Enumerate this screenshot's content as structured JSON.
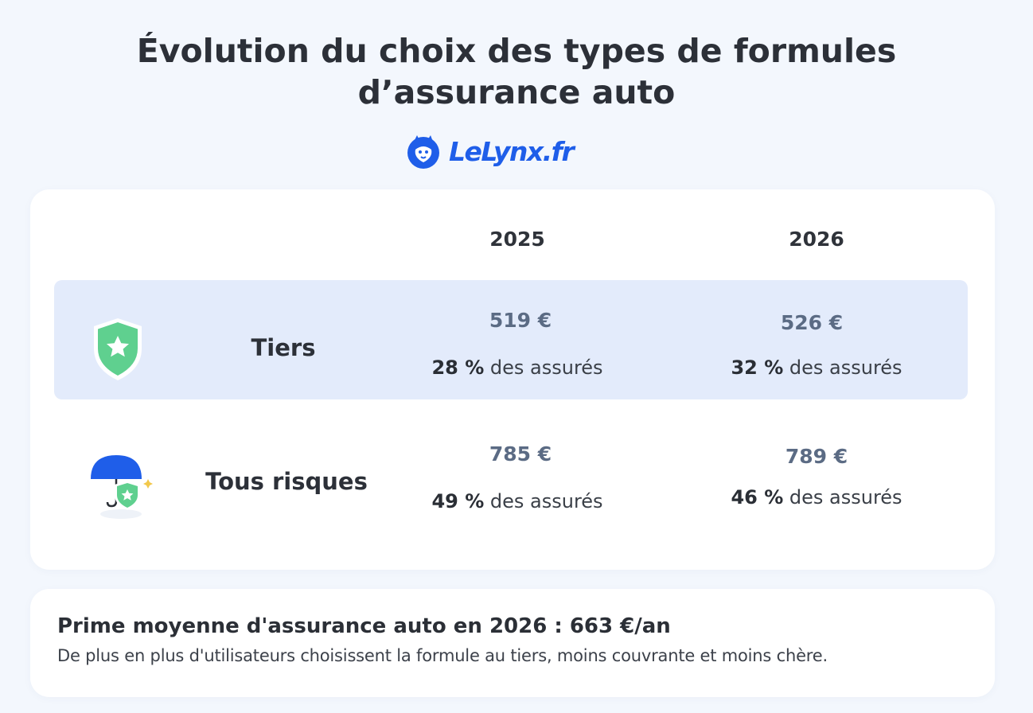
{
  "header": {
    "title_line1": "Évolution du choix des types de formules",
    "title_line2": "d’assurance auto",
    "logo_text": "LeLynx.fr"
  },
  "table": {
    "years": [
      "2025",
      "2026"
    ],
    "rows": [
      {
        "label": "Tiers",
        "icon": "shield-star-icon",
        "values": [
          {
            "price": "519 €",
            "share_pct": "28 %",
            "share_text": "des assurés"
          },
          {
            "price": "526 €",
            "share_pct": "32 %",
            "share_text": "des assurés"
          }
        ]
      },
      {
        "label": "Tous risques",
        "icon": "umbrella-shield-icon",
        "values": [
          {
            "price": "785 €",
            "share_pct": "49 %",
            "share_text": "des assurés"
          },
          {
            "price": "789 €",
            "share_pct": "46 %",
            "share_text": "des assurés"
          }
        ]
      }
    ]
  },
  "footer": {
    "title": "Prime moyenne d'assurance auto en 2026 : 663 €/an",
    "subtitle": "De plus en plus d'utilisateurs choisissent la formule au tiers, moins couvrante et moins chère."
  },
  "colors": {
    "background": "#f3f7fd",
    "brand_blue": "#1f5ee9",
    "highlight_row": "#e3ebfb",
    "shield_green": "#5fd08f",
    "price_gray_blue": "#5b6b84"
  }
}
